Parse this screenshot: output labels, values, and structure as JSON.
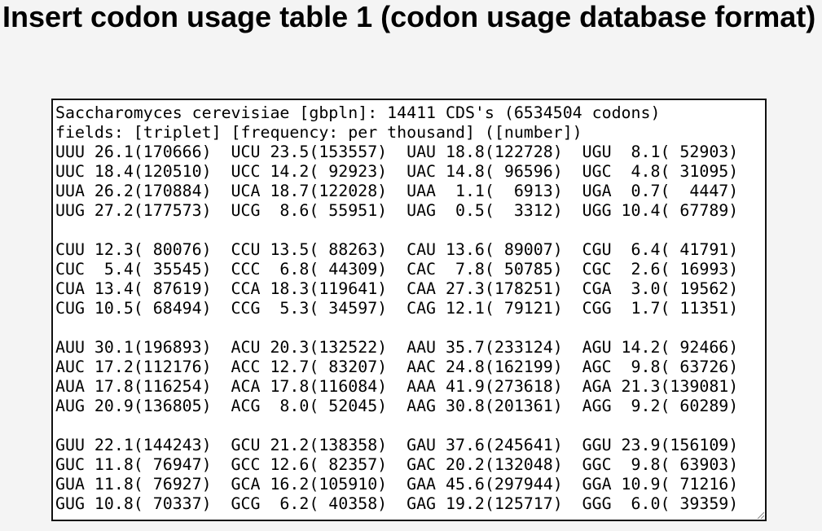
{
  "title": "Insert codon usage table 1 (codon usage database format)",
  "textarea": {
    "header": [
      "Saccharomyces cerevisiae [gbpln]: 14411 CDS's (6534504 codons)",
      "fields: [triplet] [frequency: per thousand] ([number])"
    ],
    "groups": [
      [
        "UUU 26.1(170666)  UCU 23.5(153557)  UAU 18.8(122728)  UGU  8.1( 52903)",
        "UUC 18.4(120510)  UCC 14.2( 92923)  UAC 14.8( 96596)  UGC  4.8( 31095)",
        "UUA 26.2(170884)  UCA 18.7(122028)  UAA  1.1(  6913)  UGA  0.7(  4447)",
        "UUG 27.2(177573)  UCG  8.6( 55951)  UAG  0.5(  3312)  UGG 10.4( 67789)"
      ],
      [
        "CUU 12.3( 80076)  CCU 13.5( 88263)  CAU 13.6( 89007)  CGU  6.4( 41791)",
        "CUC  5.4( 35545)  CCC  6.8( 44309)  CAC  7.8( 50785)  CGC  2.6( 16993)",
        "CUA 13.4( 87619)  CCA 18.3(119641)  CAA 27.3(178251)  CGA  3.0( 19562)",
        "CUG 10.5( 68494)  CCG  5.3( 34597)  CAG 12.1( 79121)  CGG  1.7( 11351)"
      ],
      [
        "AUU 30.1(196893)  ACU 20.3(132522)  AAU 35.7(233124)  AGU 14.2( 92466)",
        "AUC 17.2(112176)  ACC 12.7( 83207)  AAC 24.8(162199)  AGC  9.8( 63726)",
        "AUA 17.8(116254)  ACA 17.8(116084)  AAA 41.9(273618)  AGA 21.3(139081)",
        "AUG 20.9(136805)  ACG  8.0( 52045)  AAG 30.8(201361)  AGG  9.2( 60289)"
      ],
      [
        "GUU 22.1(144243)  GCU 21.2(138358)  GAU 37.6(245641)  GGU 23.9(156109)",
        "GUC 11.8( 76947)  GCC 12.6( 82357)  GAC 20.2(132048)  GGC  9.8( 63903)",
        "GUA 11.8( 76927)  GCA 16.2(105910)  GAA 45.6(297944)  GGA 10.9( 71216)",
        "GUG 10.8( 70337)  GCG  6.2( 40358)  GAG 19.2(125717)  GGG  6.0( 39359)"
      ]
    ]
  }
}
